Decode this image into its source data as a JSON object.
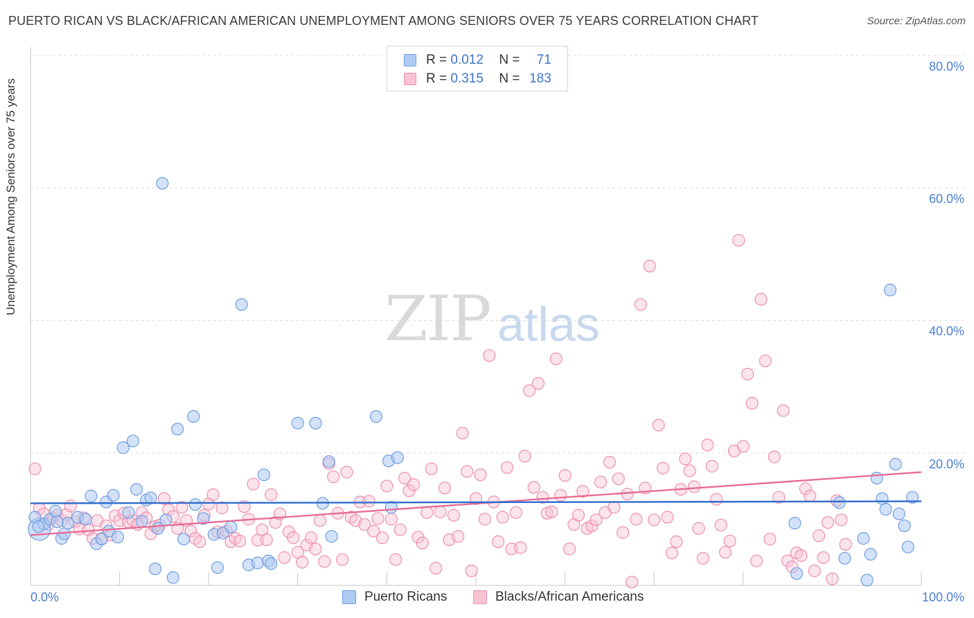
{
  "title": "PUERTO RICAN VS BLACK/AFRICAN AMERICAN UNEMPLOYMENT AMONG SENIORS OVER 75 YEARS CORRELATION CHART",
  "source": "Source: ZipAtlas.com",
  "watermark": {
    "part1": "ZIP",
    "part2": "atlas"
  },
  "legend_top": {
    "rows": [
      {
        "r_label": "R =",
        "r_value": "0.012",
        "n_label": "N =",
        "n_value": "71",
        "color": "#aecbf2",
        "stroke": "#6f9ee0"
      },
      {
        "r_label": "R =",
        "r_value": "0.315",
        "n_label": "N =",
        "n_value": "183",
        "color": "#f8c4d4",
        "stroke": "#ec8fae"
      }
    ]
  },
  "legend_bottom": [
    {
      "label": "Puerto Ricans",
      "color": "#aecbf2",
      "stroke": "#6f9ee0"
    },
    {
      "label": "Blacks/African Americans",
      "color": "#f8c4d4",
      "stroke": "#ec8fae"
    }
  ],
  "axes": {
    "ylabel": "Unemployment Among Seniors over 75 years",
    "y_ticks": [
      "80.0%",
      "60.0%",
      "40.0%",
      "20.0%"
    ],
    "x_ticks": [
      "0.0%",
      "100.0%"
    ]
  },
  "chart_data": {
    "type": "scatter",
    "title": "PUERTO RICAN VS BLACK/AFRICAN AMERICAN UNEMPLOYMENT AMONG SENIORS OVER 75 YEARS CORRELATION CHART",
    "xlabel": "",
    "ylabel": "Unemployment Among Seniors over 75 years",
    "xlim": [
      0,
      100
    ],
    "ylim": [
      0,
      80
    ],
    "y_gridlines": [
      20,
      40,
      60,
      80
    ],
    "grid": true,
    "legend_position": "bottom",
    "series": [
      {
        "name": "Puerto Ricans",
        "color": "#6f9ee0",
        "fill": "#aecbf2",
        "R": 0.012,
        "N": 71,
        "trend": {
          "y_at_x0": 12.4,
          "y_at_x100": 12.7,
          "color": "#2f6cc9"
        },
        "points": [
          [
            1.0,
            8.5
          ],
          [
            1.5,
            9.3
          ],
          [
            2.2,
            10.0
          ],
          [
            2.8,
            11.2
          ],
          [
            3.5,
            7.1
          ],
          [
            3.8,
            7.8
          ],
          [
            4.2,
            9.4
          ],
          [
            5.3,
            10.3
          ],
          [
            6.2,
            10.0
          ],
          [
            6.8,
            13.5
          ],
          [
            7.4,
            6.3
          ],
          [
            8.0,
            7.0
          ],
          [
            8.5,
            12.6
          ],
          [
            8.8,
            8.2
          ],
          [
            9.3,
            13.6
          ],
          [
            9.8,
            7.3
          ],
          [
            10.4,
            20.8
          ],
          [
            11.0,
            11.0
          ],
          [
            11.5,
            21.8
          ],
          [
            11.9,
            14.5
          ],
          [
            12.5,
            9.7
          ],
          [
            13.0,
            12.9
          ],
          [
            13.5,
            13.2
          ],
          [
            14.0,
            2.5
          ],
          [
            14.3,
            8.6
          ],
          [
            14.8,
            60.7
          ],
          [
            15.2,
            9.9
          ],
          [
            16.0,
            1.2
          ],
          [
            16.5,
            23.6
          ],
          [
            17.2,
            7.0
          ],
          [
            18.3,
            25.5
          ],
          [
            18.5,
            12.2
          ],
          [
            19.4,
            10.1
          ],
          [
            20.6,
            7.7
          ],
          [
            21.0,
            2.7
          ],
          [
            21.6,
            7.9
          ],
          [
            22.5,
            8.8
          ],
          [
            23.7,
            42.4
          ],
          [
            24.5,
            3.1
          ],
          [
            25.5,
            3.4
          ],
          [
            26.2,
            16.7
          ],
          [
            26.7,
            3.7
          ],
          [
            27.0,
            3.3
          ],
          [
            30.0,
            24.5
          ],
          [
            32.0,
            24.5
          ],
          [
            32.8,
            12.4
          ],
          [
            33.5,
            18.7
          ],
          [
            33.8,
            7.4
          ],
          [
            38.8,
            25.5
          ],
          [
            40.2,
            18.8
          ],
          [
            40.5,
            11.8
          ],
          [
            41.2,
            19.3
          ],
          [
            85.8,
            9.4
          ],
          [
            86.0,
            1.8
          ],
          [
            90.8,
            12.5
          ],
          [
            91.4,
            4.1
          ],
          [
            93.5,
            7.1
          ],
          [
            93.9,
            0.8
          ],
          [
            94.3,
            4.7
          ],
          [
            95.0,
            16.2
          ],
          [
            95.6,
            13.1
          ],
          [
            96.0,
            11.5
          ],
          [
            96.5,
            44.6
          ],
          [
            97.1,
            18.3
          ],
          [
            97.5,
            10.8
          ],
          [
            98.1,
            9.0
          ],
          [
            98.5,
            5.8
          ],
          [
            99.0,
            13.3
          ],
          [
            0.5,
            10.3
          ],
          [
            0.9,
            8.9
          ],
          [
            3.0,
            9.6
          ]
        ]
      },
      {
        "name": "Blacks/African Americans",
        "color": "#ec8fae",
        "fill": "#f8c4d4",
        "R": 0.315,
        "N": 183,
        "trend": {
          "y_at_x0": 7.6,
          "y_at_x100": 17.1,
          "color": "#e66c96"
        },
        "points": [
          [
            0.5,
            17.6
          ],
          [
            1.0,
            11.6
          ],
          [
            1.5,
            10.8
          ],
          [
            2.0,
            9.2
          ],
          [
            2.5,
            10.2
          ],
          [
            3.0,
            10.6
          ],
          [
            3.5,
            9.8
          ],
          [
            4.0,
            10.7
          ],
          [
            4.5,
            12.0
          ],
          [
            5.0,
            9.6
          ],
          [
            5.5,
            8.5
          ],
          [
            6.0,
            10.2
          ],
          [
            6.5,
            8.4
          ],
          [
            7.0,
            7.1
          ],
          [
            7.5,
            9.8
          ],
          [
            8.0,
            7.1
          ],
          [
            8.5,
            9.0
          ],
          [
            9.0,
            7.6
          ],
          [
            9.5,
            10.5
          ],
          [
            10.0,
            9.8
          ],
          [
            10.5,
            10.9
          ],
          [
            11.0,
            9.6
          ],
          [
            11.5,
            9.8
          ],
          [
            12.0,
            9.2
          ],
          [
            12.5,
            11.0
          ],
          [
            13.0,
            10.2
          ],
          [
            13.5,
            7.8
          ],
          [
            14.0,
            8.9
          ],
          [
            14.5,
            9.1
          ],
          [
            15.0,
            13.1
          ],
          [
            15.5,
            11.4
          ],
          [
            16.0,
            10.4
          ],
          [
            16.5,
            8.6
          ],
          [
            17.0,
            11.8
          ],
          [
            17.5,
            9.8
          ],
          [
            18.0,
            8.2
          ],
          [
            18.5,
            7.1
          ],
          [
            19.0,
            6.6
          ],
          [
            19.5,
            10.6
          ],
          [
            20.0,
            12.3
          ],
          [
            20.5,
            13.7
          ],
          [
            21.0,
            8.1
          ],
          [
            21.5,
            11.7
          ],
          [
            22.0,
            8.2
          ],
          [
            22.5,
            6.6
          ],
          [
            23.0,
            7.1
          ],
          [
            23.5,
            6.7
          ],
          [
            24.0,
            11.9
          ],
          [
            24.5,
            10.0
          ],
          [
            25.0,
            15.3
          ],
          [
            25.5,
            6.8
          ],
          [
            26.0,
            8.4
          ],
          [
            26.5,
            6.9
          ],
          [
            27.0,
            13.7
          ],
          [
            27.5,
            9.5
          ],
          [
            28.0,
            10.8
          ],
          [
            28.5,
            4.2
          ],
          [
            29.0,
            8.1
          ],
          [
            29.5,
            7.2
          ],
          [
            30.0,
            5.0
          ],
          [
            30.5,
            3.5
          ],
          [
            31.0,
            6.1
          ],
          [
            31.5,
            7.2
          ],
          [
            32.0,
            5.5
          ],
          [
            32.5,
            9.8
          ],
          [
            33.0,
            3.6
          ],
          [
            33.5,
            18.4
          ],
          [
            34.0,
            16.4
          ],
          [
            34.5,
            10.9
          ],
          [
            35.0,
            3.9
          ],
          [
            35.5,
            17.1
          ],
          [
            36.0,
            10.3
          ],
          [
            36.5,
            9.8
          ],
          [
            37.0,
            12.6
          ],
          [
            37.5,
            9.2
          ],
          [
            38.0,
            12.7
          ],
          [
            38.5,
            8.2
          ],
          [
            39.0,
            10.1
          ],
          [
            39.5,
            7.2
          ],
          [
            40.0,
            15.0
          ],
          [
            40.5,
            10.0
          ],
          [
            41.0,
            3.9
          ],
          [
            41.5,
            8.4
          ],
          [
            42.0,
            16.2
          ],
          [
            42.5,
            14.3
          ],
          [
            43.0,
            15.2
          ],
          [
            43.5,
            7.3
          ],
          [
            44.0,
            6.4
          ],
          [
            44.5,
            11.0
          ],
          [
            45.0,
            17.6
          ],
          [
            45.5,
            2.6
          ],
          [
            46.0,
            11.1
          ],
          [
            46.5,
            14.7
          ],
          [
            47.0,
            6.9
          ],
          [
            47.5,
            10.6
          ],
          [
            48.0,
            7.4
          ],
          [
            48.5,
            23.0
          ],
          [
            49.0,
            17.2
          ],
          [
            49.5,
            2.2
          ],
          [
            50.0,
            13.1
          ],
          [
            50.5,
            16.7
          ],
          [
            51.0,
            10.0
          ],
          [
            51.5,
            34.7
          ],
          [
            52.0,
            12.6
          ],
          [
            52.5,
            6.6
          ],
          [
            53.0,
            10.3
          ],
          [
            53.5,
            17.8
          ],
          [
            54.0,
            5.5
          ],
          [
            54.5,
            11.0
          ],
          [
            55.0,
            5.7
          ],
          [
            55.5,
            19.5
          ],
          [
            56.0,
            29.4
          ],
          [
            56.5,
            14.8
          ],
          [
            57.0,
            30.5
          ],
          [
            57.5,
            13.3
          ],
          [
            58.0,
            10.9
          ],
          [
            58.5,
            11.1
          ],
          [
            59.0,
            34.2
          ],
          [
            59.5,
            13.6
          ],
          [
            60.0,
            16.6
          ],
          [
            60.5,
            5.5
          ],
          [
            61.0,
            9.2
          ],
          [
            61.5,
            10.6
          ],
          [
            62.0,
            14.2
          ],
          [
            62.5,
            8.6
          ],
          [
            63.0,
            9.0
          ],
          [
            63.5,
            9.9
          ],
          [
            64.0,
            15.6
          ],
          [
            64.5,
            11.0
          ],
          [
            65.0,
            18.6
          ],
          [
            65.5,
            11.8
          ],
          [
            66.0,
            16.1
          ],
          [
            66.5,
            8.0
          ],
          [
            67.0,
            13.8
          ],
          [
            67.5,
            0.5
          ],
          [
            68.0,
            10.0
          ],
          [
            68.5,
            42.4
          ],
          [
            69.0,
            14.7
          ],
          [
            69.5,
            48.2
          ],
          [
            70.0,
            9.9
          ],
          [
            70.5,
            24.2
          ],
          [
            71.0,
            17.7
          ],
          [
            71.5,
            10.3
          ],
          [
            72.0,
            4.9
          ],
          [
            72.5,
            6.6
          ],
          [
            73.0,
            14.5
          ],
          [
            73.5,
            19.1
          ],
          [
            74.0,
            17.3
          ],
          [
            74.5,
            14.9
          ],
          [
            75.0,
            8.6
          ],
          [
            75.5,
            4.1
          ],
          [
            76.0,
            21.2
          ],
          [
            76.5,
            18.0
          ],
          [
            77.0,
            13.0
          ],
          [
            77.5,
            9.1
          ],
          [
            78.0,
            5.0
          ],
          [
            78.5,
            6.7
          ],
          [
            79.0,
            20.3
          ],
          [
            79.5,
            52.1
          ],
          [
            80.0,
            21.0
          ],
          [
            80.5,
            31.9
          ],
          [
            81.0,
            27.5
          ],
          [
            81.5,
            3.7
          ],
          [
            82.0,
            43.2
          ],
          [
            82.5,
            33.9
          ],
          [
            83.0,
            7.0
          ],
          [
            83.5,
            19.4
          ],
          [
            84.0,
            13.3
          ],
          [
            84.5,
            26.4
          ],
          [
            85.0,
            3.7
          ],
          [
            85.5,
            2.8
          ],
          [
            86.0,
            4.9
          ],
          [
            86.5,
            4.5
          ],
          [
            87.0,
            14.6
          ],
          [
            87.5,
            13.5
          ],
          [
            88.0,
            2.2
          ],
          [
            88.5,
            7.5
          ],
          [
            89.0,
            4.2
          ],
          [
            89.5,
            9.5
          ],
          [
            90.0,
            1.0
          ],
          [
            90.5,
            12.8
          ],
          [
            91.0,
            9.9
          ],
          [
            91.5,
            6.2
          ]
        ]
      }
    ]
  }
}
